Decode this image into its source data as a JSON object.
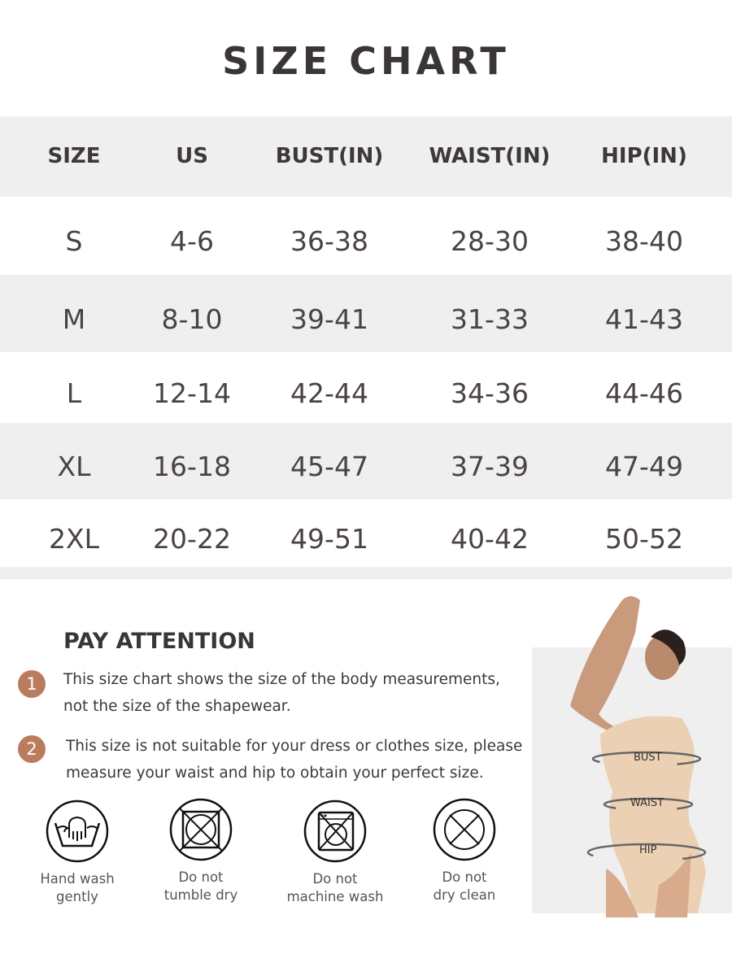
{
  "title": "SIZE CHART",
  "table": {
    "headers": [
      "SIZE",
      "US",
      "BUST(IN)",
      "WAIST(IN)",
      "HIP(IN)"
    ],
    "rows": [
      [
        "S",
        "4-6",
        "36-38",
        "28-30",
        "38-40"
      ],
      [
        "M",
        "8-10",
        "39-41",
        "31-33",
        "41-43"
      ],
      [
        "L",
        "12-14",
        "42-44",
        "34-36",
        "44-46"
      ],
      [
        "XL",
        "16-18",
        "45-47",
        "37-39",
        "47-49"
      ],
      [
        "2XL",
        "20-22",
        "49-51",
        "40-42",
        "50-52"
      ]
    ]
  },
  "attention": {
    "heading": "PAY ATTENTION",
    "notes": [
      {
        "num": "1",
        "line1": "This size chart shows the size of the body measurements,",
        "line2": "not the size of the shapewear."
      },
      {
        "num": "2",
        "line1": "This size is not suitable for your dress or clothes size, please",
        "line2": "measure your waist and hip to obtain your perfect size."
      }
    ],
    "accent": "#b97d5d"
  },
  "care": [
    {
      "icon": "hand-wash-icon",
      "line1": "Hand wash",
      "line2": "gently"
    },
    {
      "icon": "no-tumble-dry-icon",
      "line1": "Do not",
      "line2": "tumble dry"
    },
    {
      "icon": "no-machine-wash-icon",
      "line1": "Do not",
      "line2": "machine wash"
    },
    {
      "icon": "no-dry-clean-icon",
      "line1": "Do not",
      "line2": "dry clean"
    }
  ],
  "figure": {
    "labels": [
      "BUST",
      "WAIST",
      "HIP"
    ]
  }
}
